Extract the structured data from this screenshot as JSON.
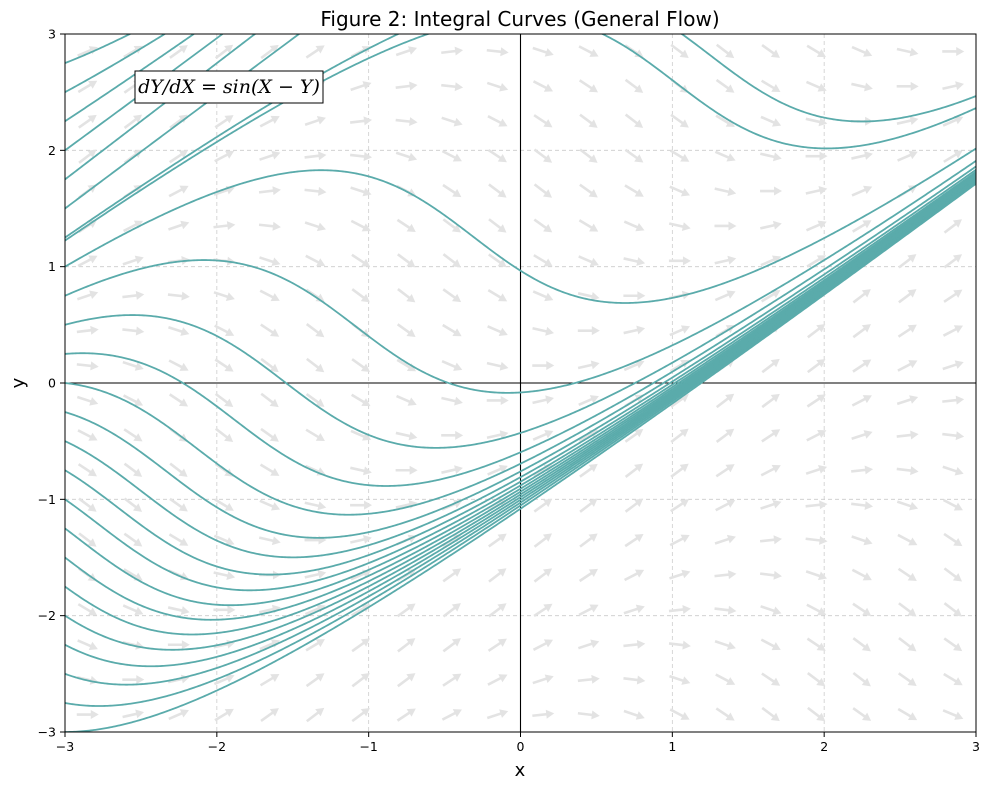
{
  "chart_data": {
    "type": "line",
    "title": "Figure 2: Integral Curves (General Flow)",
    "xlabel": "x",
    "ylabel": "y",
    "xlim": [
      -3,
      3
    ],
    "ylim": [
      -3,
      3
    ],
    "xticks": [
      -3,
      -2,
      -1,
      0,
      1,
      2,
      3
    ],
    "yticks": [
      -3,
      -2,
      -1,
      0,
      1,
      2,
      3
    ],
    "xtick_labels": [
      "−3",
      "−2",
      "−1",
      "0",
      "1",
      "2",
      "3"
    ],
    "ytick_labels": [
      "−3",
      "−2",
      "−1",
      "0",
      "1",
      "2",
      "3"
    ],
    "grid": true,
    "equation": "dY/dX = sin(X − Y)",
    "series": [
      {
        "values": [
          {
            "x": -3,
            "y": -3.0
          }
        ]
      },
      {
        "values": [
          {
            "x": -3,
            "y": -2.75
          }
        ]
      },
      {
        "values": [
          {
            "x": -3,
            "y": -2.5
          }
        ]
      },
      {
        "values": [
          {
            "x": -3,
            "y": -2.25
          }
        ]
      },
      {
        "values": [
          {
            "x": -3,
            "y": -2.0
          }
        ]
      },
      {
        "values": [
          {
            "x": -3,
            "y": -1.75
          }
        ]
      },
      {
        "values": [
          {
            "x": -3,
            "y": -1.5
          }
        ]
      },
      {
        "values": [
          {
            "x": -3,
            "y": -1.25
          }
        ]
      },
      {
        "values": [
          {
            "x": -3,
            "y": -1.0
          }
        ]
      },
      {
        "values": [
          {
            "x": -3,
            "y": -0.75
          }
        ]
      },
      {
        "values": [
          {
            "x": -3,
            "y": -0.5
          }
        ]
      },
      {
        "values": [
          {
            "x": -3,
            "y": -0.25
          }
        ]
      },
      {
        "values": [
          {
            "x": -3,
            "y": 0.0
          }
        ]
      },
      {
        "values": [
          {
            "x": -3,
            "y": 0.25
          }
        ]
      },
      {
        "values": [
          {
            "x": -3,
            "y": 0.5
          }
        ]
      },
      {
        "values": [
          {
            "x": -3,
            "y": 0.75
          }
        ]
      },
      {
        "values": [
          {
            "x": -3,
            "y": 1.0
          }
        ]
      },
      {
        "values": [
          {
            "x": -3,
            "y": 1.25
          }
        ]
      },
      {
        "values": [
          {
            "x": -3,
            "y": 1.5
          }
        ]
      },
      {
        "values": [
          {
            "x": -3,
            "y": 1.75
          }
        ]
      },
      {
        "values": [
          {
            "x": -3,
            "y": 2.0
          }
        ]
      },
      {
        "values": [
          {
            "x": -3,
            "y": 2.25
          }
        ]
      },
      {
        "values": [
          {
            "x": -3,
            "y": 2.5
          }
        ]
      },
      {
        "values": [
          {
            "x": -3,
            "y": 2.75
          }
        ]
      },
      {
        "values": [
          {
            "x": 0.54,
            "y": 3.0
          }
        ]
      }
    ],
    "colors": {
      "curve": "#5aabab",
      "vector": "#e3e3e3",
      "grid": "#cccccc",
      "axis_line": "#000000"
    }
  }
}
